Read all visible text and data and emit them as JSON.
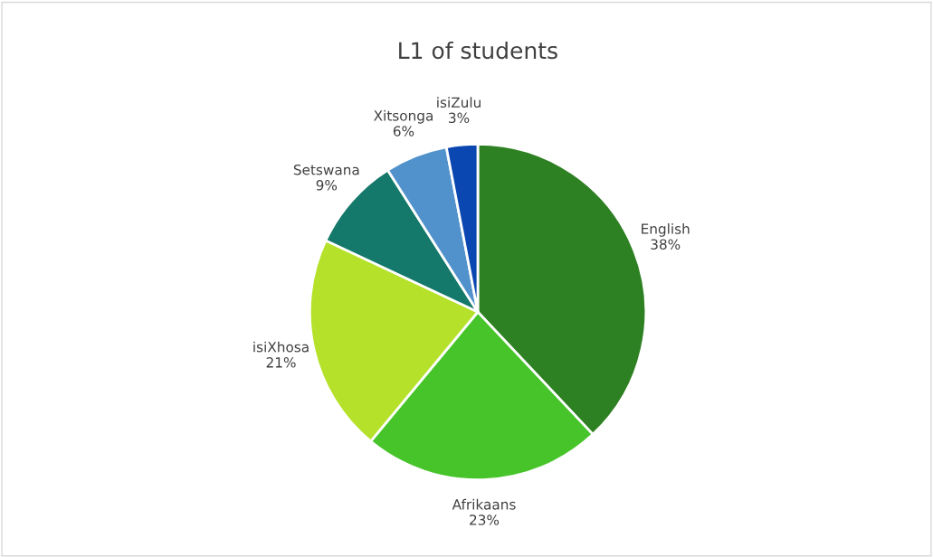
{
  "chart_data": {
    "type": "pie",
    "title": "L1 of students",
    "categories": [
      "English",
      "Afrikaans",
      "isiXhosa",
      "Setswana",
      "Xitsonga",
      "isiZulu"
    ],
    "values": [
      38,
      23,
      21,
      9,
      6,
      3
    ],
    "value_labels": [
      "38%",
      "23%",
      "21%",
      "9%",
      "6%",
      "3%"
    ],
    "colors": [
      "#2e8122",
      "#46c42a",
      "#b5e12a",
      "#14786a",
      "#5192cc",
      "#0b47b0"
    ],
    "legend": false
  }
}
